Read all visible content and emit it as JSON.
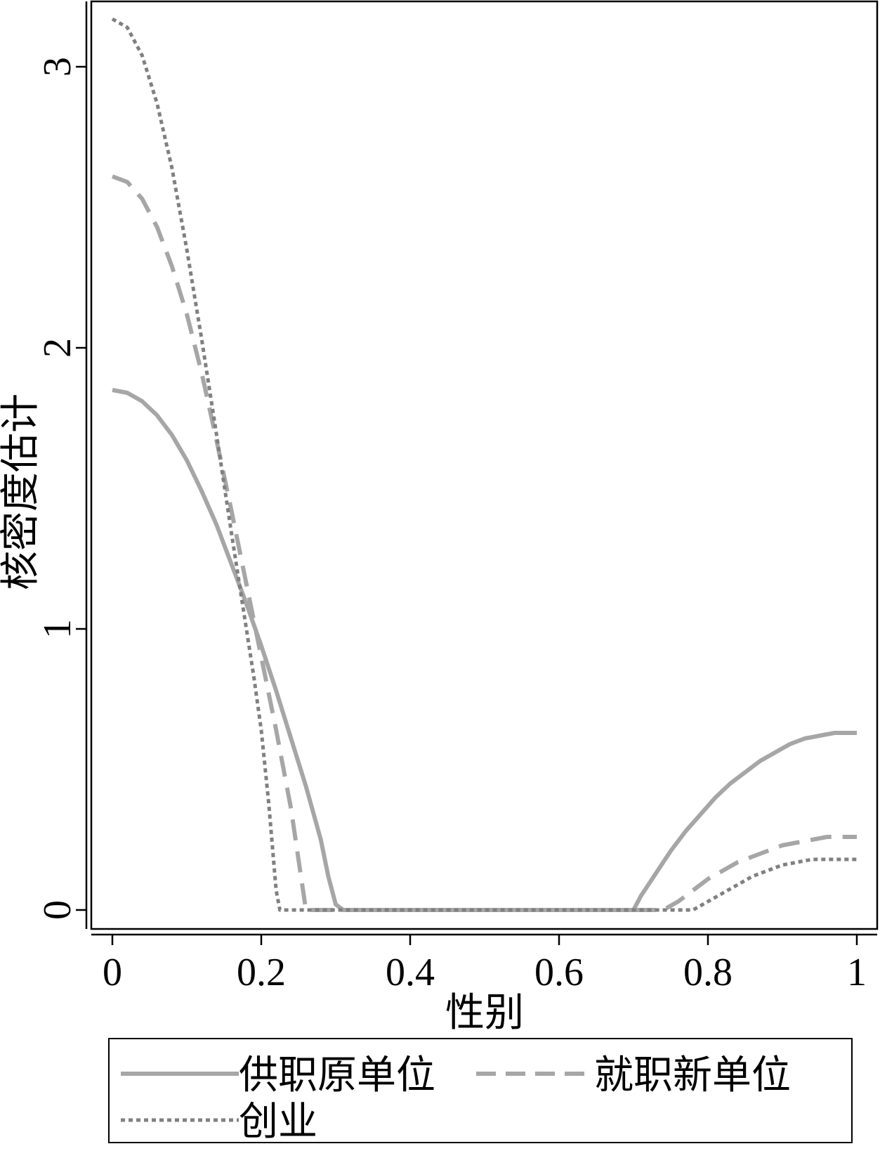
{
  "chart_data": {
    "type": "line",
    "title": "",
    "xlabel": "性别",
    "ylabel": "核密度估计",
    "xlim": [
      0,
      1
    ],
    "ylim": [
      0,
      3.2
    ],
    "x_ticks": [
      "0",
      "0.2",
      "0.4",
      "0.6",
      "0.8",
      "1"
    ],
    "y_ticks": [
      "0",
      "1",
      "2",
      "3"
    ],
    "grid": false,
    "legend_position": "bottom",
    "series": [
      {
        "name": "供职原单位",
        "style": "solid",
        "color": "#a6a6a6",
        "points": [
          [
            0,
            1.85
          ],
          [
            0.02,
            1.84
          ],
          [
            0.04,
            1.81
          ],
          [
            0.06,
            1.76
          ],
          [
            0.08,
            1.69
          ],
          [
            0.1,
            1.6
          ],
          [
            0.12,
            1.49
          ],
          [
            0.14,
            1.37
          ],
          [
            0.16,
            1.23
          ],
          [
            0.18,
            1.09
          ],
          [
            0.2,
            0.94
          ],
          [
            0.22,
            0.78
          ],
          [
            0.24,
            0.61
          ],
          [
            0.26,
            0.44
          ],
          [
            0.28,
            0.25
          ],
          [
            0.29,
            0.12
          ],
          [
            0.3,
            0.02
          ],
          [
            0.31,
            0.0
          ],
          [
            0.7,
            0.0
          ],
          [
            0.71,
            0.05
          ],
          [
            0.73,
            0.13
          ],
          [
            0.75,
            0.21
          ],
          [
            0.77,
            0.28
          ],
          [
            0.79,
            0.34
          ],
          [
            0.81,
            0.4
          ],
          [
            0.83,
            0.45
          ],
          [
            0.85,
            0.49
          ],
          [
            0.87,
            0.53
          ],
          [
            0.89,
            0.56
          ],
          [
            0.91,
            0.59
          ],
          [
            0.93,
            0.61
          ],
          [
            0.95,
            0.62
          ],
          [
            0.97,
            0.63
          ],
          [
            1.0,
            0.63
          ]
        ]
      },
      {
        "name": "就职新单位",
        "style": "dashed",
        "color": "#a6a6a6",
        "points": [
          [
            0,
            2.61
          ],
          [
            0.02,
            2.59
          ],
          [
            0.04,
            2.53
          ],
          [
            0.06,
            2.43
          ],
          [
            0.08,
            2.29
          ],
          [
            0.1,
            2.12
          ],
          [
            0.12,
            1.91
          ],
          [
            0.14,
            1.67
          ],
          [
            0.16,
            1.42
          ],
          [
            0.18,
            1.16
          ],
          [
            0.2,
            0.9
          ],
          [
            0.22,
            0.64
          ],
          [
            0.24,
            0.36
          ],
          [
            0.25,
            0.18
          ],
          [
            0.26,
            0.0
          ],
          [
            0.74,
            0.0
          ],
          [
            0.76,
            0.03
          ],
          [
            0.78,
            0.07
          ],
          [
            0.8,
            0.11
          ],
          [
            0.82,
            0.14
          ],
          [
            0.84,
            0.17
          ],
          [
            0.86,
            0.19
          ],
          [
            0.88,
            0.21
          ],
          [
            0.9,
            0.23
          ],
          [
            0.92,
            0.24
          ],
          [
            0.94,
            0.25
          ],
          [
            0.96,
            0.26
          ],
          [
            1.0,
            0.26
          ]
        ]
      },
      {
        "name": "创业",
        "style": "dotted",
        "color": "#808080",
        "points": [
          [
            0,
            3.17
          ],
          [
            0.02,
            3.14
          ],
          [
            0.04,
            3.04
          ],
          [
            0.06,
            2.87
          ],
          [
            0.08,
            2.64
          ],
          [
            0.1,
            2.35
          ],
          [
            0.12,
            2.03
          ],
          [
            0.14,
            1.69
          ],
          [
            0.16,
            1.34
          ],
          [
            0.18,
            1.0
          ],
          [
            0.19,
            0.83
          ],
          [
            0.2,
            0.64
          ],
          [
            0.21,
            0.38
          ],
          [
            0.22,
            0.07
          ],
          [
            0.225,
            0.0
          ],
          [
            0.78,
            0.0
          ],
          [
            0.8,
            0.03
          ],
          [
            0.82,
            0.06
          ],
          [
            0.84,
            0.09
          ],
          [
            0.86,
            0.12
          ],
          [
            0.88,
            0.14
          ],
          [
            0.9,
            0.16
          ],
          [
            0.92,
            0.17
          ],
          [
            0.94,
            0.18
          ],
          [
            0.96,
            0.18
          ],
          [
            1.0,
            0.18
          ]
        ]
      }
    ]
  }
}
